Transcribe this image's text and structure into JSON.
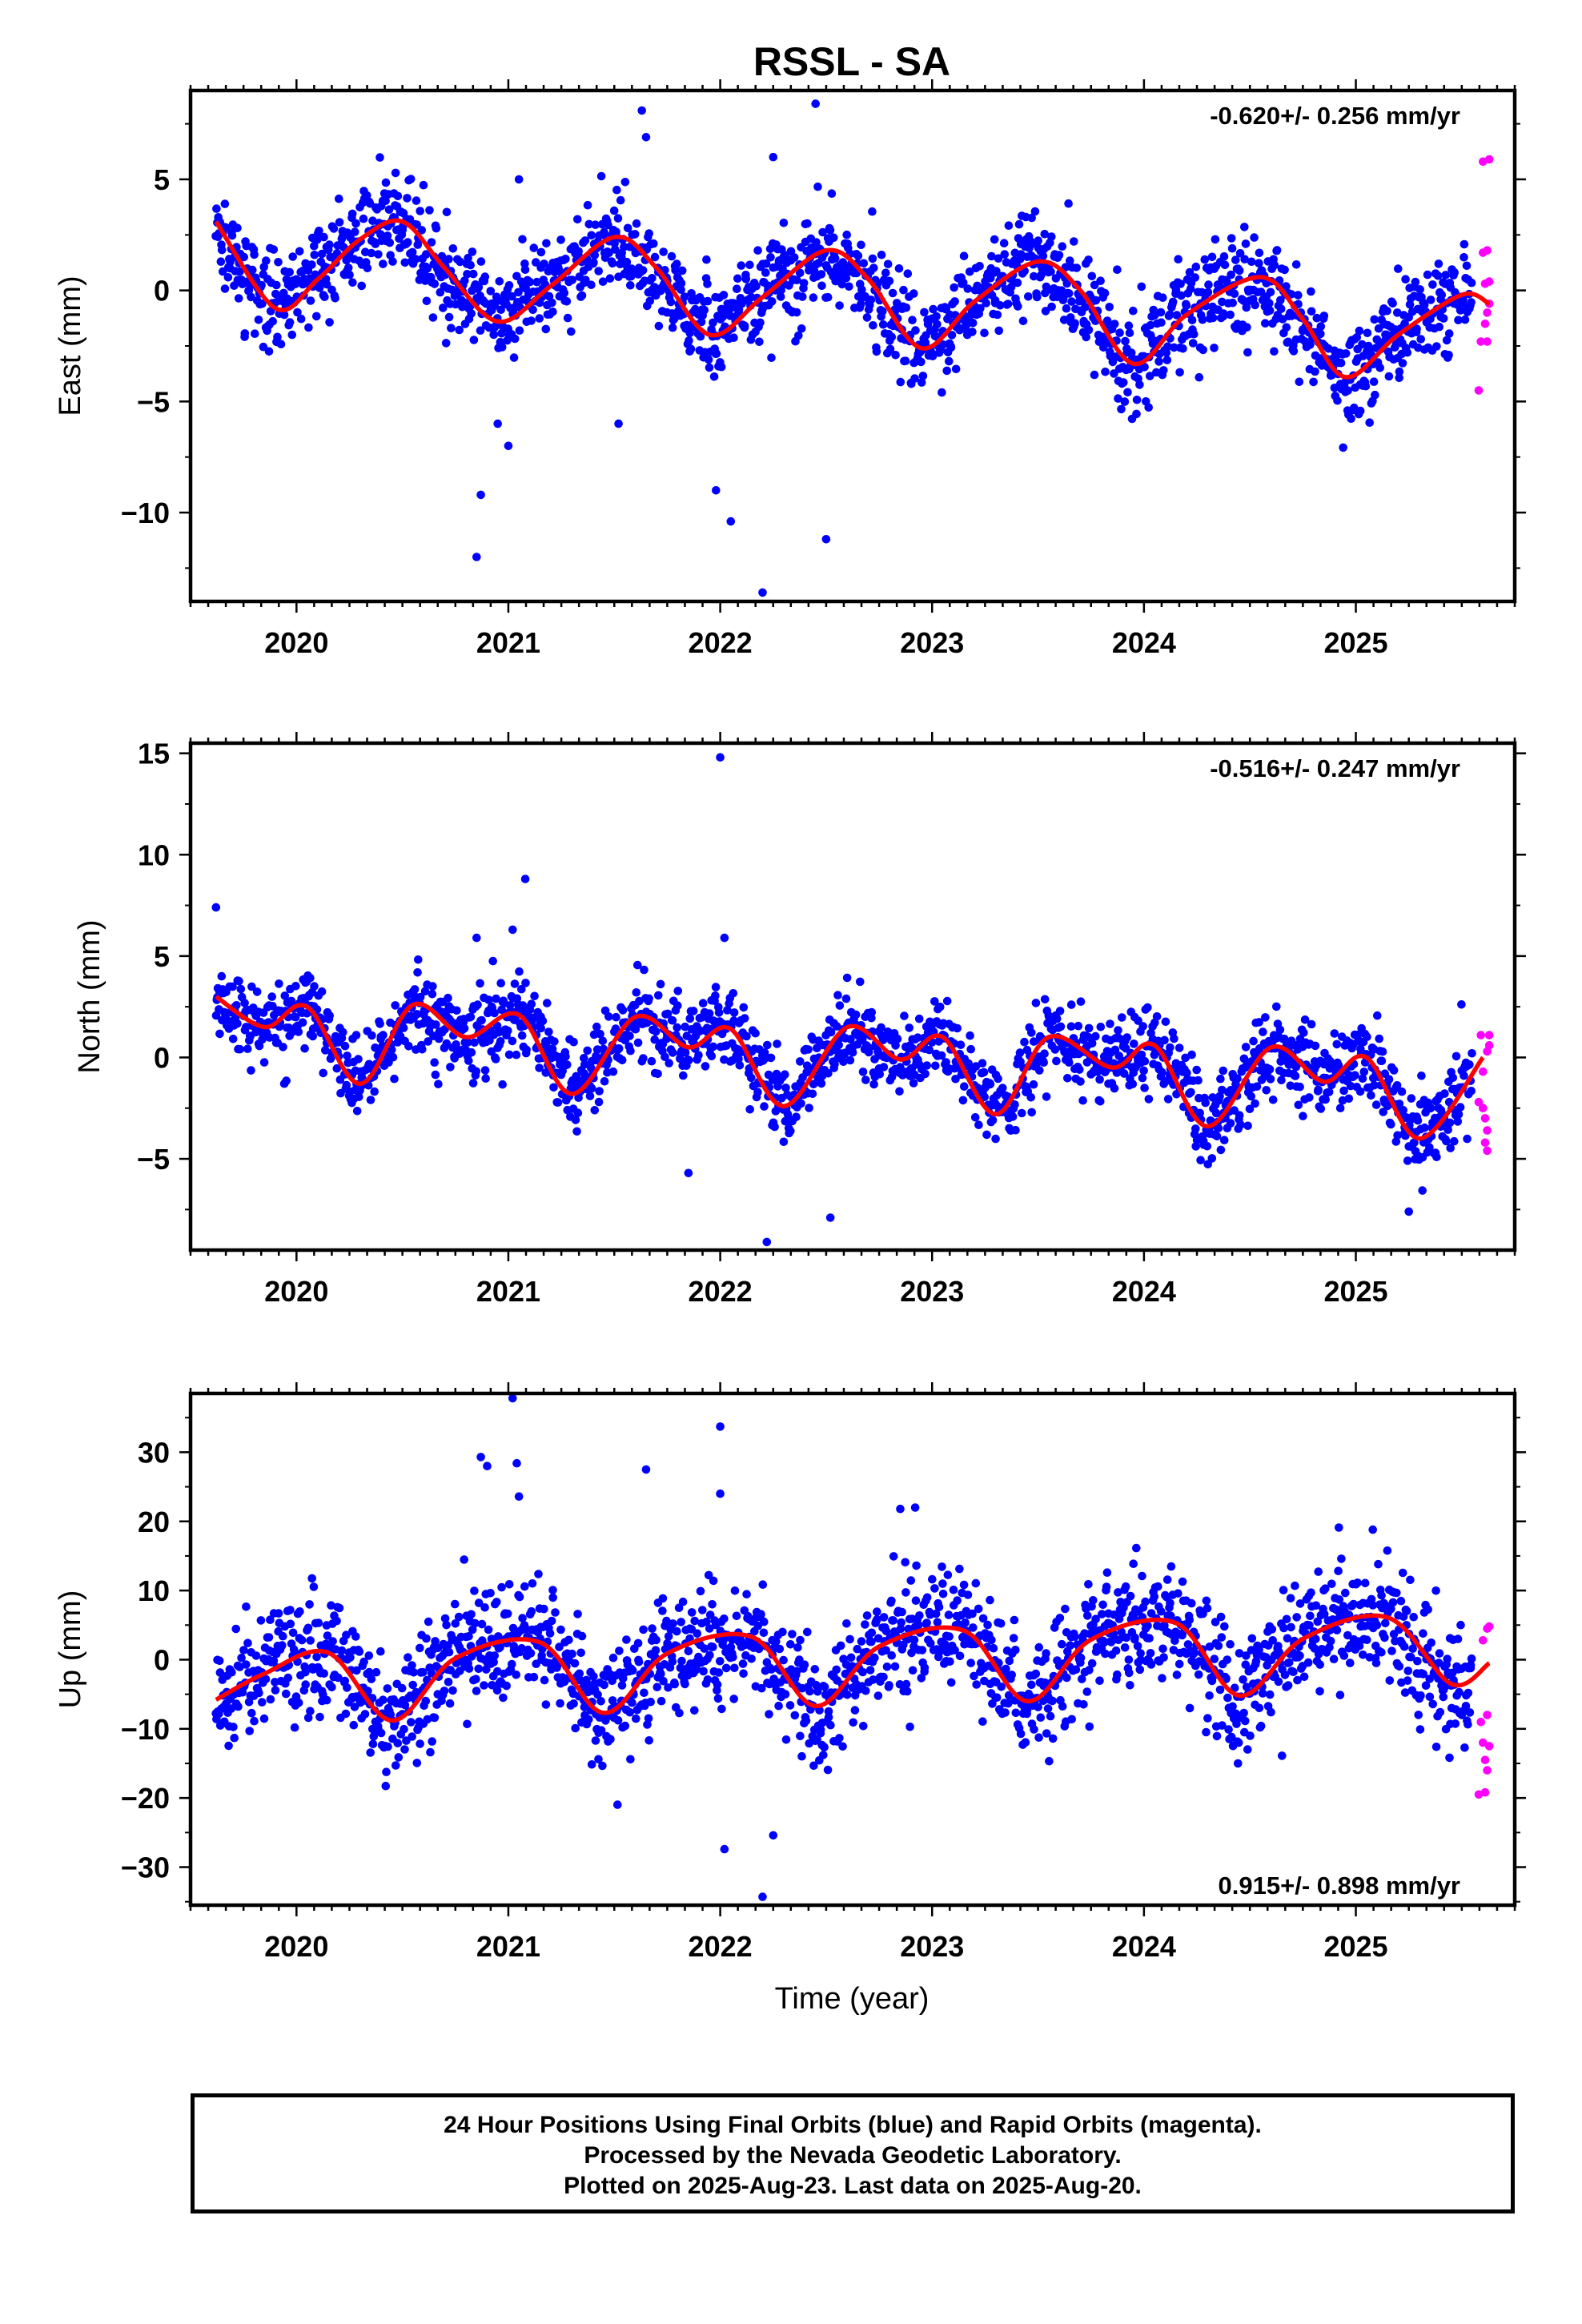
{
  "title": "RSSL - SA",
  "xlabel": "Time (year)",
  "footer": {
    "line1": "24 Hour Positions Using Final Orbits (blue) and Rapid Orbits (magenta).",
    "line2": "Processed by the Nevada Geodetic Laboratory.",
    "line3": "Plotted on 2025-Aug-23. Last data on 2025-Aug-20."
  },
  "colors": {
    "final": "#0000ff",
    "rapid": "#ff00ff",
    "fit": "#ff0000"
  },
  "chart_data": [
    {
      "type": "scatter",
      "ylabel": "East (mm)",
      "rate_label": "-0.620+/- 0.256 mm/yr",
      "rate_position": "top-right",
      "xlim": [
        2019.5,
        2025.75
      ],
      "ylim": [
        -14,
        9
      ],
      "xticks": [
        2020,
        2021,
        2022,
        2023,
        2024,
        2025
      ],
      "xtick_labels": [
        "2020",
        "2021",
        "2022",
        "2023",
        "2024",
        "2025"
      ],
      "yticks": [
        -10,
        -5,
        0,
        5
      ],
      "ytick_labels": [
        "−10",
        "−5",
        "0",
        "5"
      ],
      "trend_fit": {
        "x": [
          2019.62,
          2019.9,
          2020.1,
          2020.3,
          2020.5,
          2020.7,
          2020.95,
          2021.2,
          2021.5,
          2021.7,
          2021.95,
          2022.2,
          2022.5,
          2022.7,
          2022.95,
          2023.2,
          2023.5,
          2023.7,
          2023.95,
          2024.2,
          2024.55,
          2024.75,
          2024.95,
          2025.2,
          2025.5,
          2025.63
        ],
        "y": [
          3.1,
          -0.8,
          0.5,
          2.3,
          3.1,
          1.0,
          -1.4,
          0.2,
          2.4,
          1.0,
          -2.0,
          -0.3,
          1.8,
          0.5,
          -2.6,
          -0.5,
          1.3,
          0.0,
          -3.3,
          -1.1,
          0.6,
          -1.3,
          -3.9,
          -2.0,
          -0.2,
          -0.6
        ]
      },
      "final_series": {
        "name": "Final Orbits",
        "x_range": [
          2019.62,
          2025.55
        ]
      },
      "rapid_series": {
        "name": "Rapid Orbits",
        "x": [
          2025.58,
          2025.59,
          2025.6,
          2025.6,
          2025.61,
          2025.61,
          2025.62,
          2025.62,
          2025.62,
          2025.63,
          2025.63,
          2025.63
        ],
        "y": [
          -4.5,
          -2.3,
          5.8,
          1.7,
          -1.5,
          0.3,
          -1.0,
          1.8,
          -2.3,
          -0.6,
          0.4,
          5.9
        ]
      },
      "outliers": {
        "x": [
          2020.85,
          2020.87,
          2020.95,
          2021.0,
          2021.05,
          2021.52,
          2021.63,
          2021.65,
          2021.98,
          2022.05,
          2022.2,
          2022.25,
          2022.45,
          2022.5
        ],
        "y": [
          -12.0,
          -9.2,
          -6.0,
          -7.0,
          5.0,
          -6.0,
          8.1,
          6.9,
          -9.0,
          -10.4,
          -13.6,
          6.0,
          8.4,
          -11.2
        ]
      }
    },
    {
      "type": "scatter",
      "ylabel": "North (mm)",
      "rate_label": "-0.516+/- 0.247 mm/yr",
      "rate_position": "top-right",
      "xlim": [
        2019.5,
        2025.75
      ],
      "ylim": [
        -9.5,
        15.5
      ],
      "xticks": [
        2020,
        2021,
        2022,
        2023,
        2024,
        2025
      ],
      "xtick_labels": [
        "2020",
        "2021",
        "2022",
        "2023",
        "2024",
        "2025"
      ],
      "yticks": [
        -5,
        0,
        5,
        10,
        15
      ],
      "ytick_labels": [
        "−5",
        "0",
        "5",
        "10",
        "15"
      ],
      "trend_fit": {
        "x": [
          2019.62,
          2019.85,
          2020.05,
          2020.3,
          2020.55,
          2020.8,
          2021.05,
          2021.3,
          2021.6,
          2021.85,
          2022.05,
          2022.3,
          2022.6,
          2022.85,
          2023.05,
          2023.3,
          2023.55,
          2023.85,
          2024.05,
          2024.3,
          2024.6,
          2024.85,
          2025.05,
          2025.3,
          2025.6
        ],
        "y": [
          3.0,
          1.5,
          2.5,
          -1.3,
          2.6,
          1.0,
          2.1,
          -1.8,
          2.0,
          0.5,
          1.4,
          -2.4,
          1.5,
          -0.1,
          1.0,
          -2.8,
          1.0,
          -0.5,
          0.6,
          -3.4,
          0.5,
          -1.2,
          0.0,
          -4.0,
          0.0
        ]
      },
      "final_series": {
        "name": "Final Orbits",
        "x_range": [
          2019.62,
          2025.55
        ]
      },
      "rapid_series": {
        "name": "Rapid Orbits",
        "x": [
          2025.58,
          2025.59,
          2025.6,
          2025.6,
          2025.61,
          2025.61,
          2025.62,
          2025.62,
          2025.62,
          2025.63,
          2025.63
        ],
        "y": [
          -2.2,
          1.1,
          -0.7,
          -2.5,
          -3.0,
          -4.2,
          0.3,
          -3.6,
          -4.6,
          0.6,
          1.1
        ]
      },
      "outliers": {
        "x": [
          2019.62,
          2020.85,
          2021.02,
          2021.08,
          2021.85,
          2022.0,
          2022.02,
          2022.22,
          2022.52,
          2025.25
        ],
        "y": [
          7.4,
          5.9,
          6.3,
          8.8,
          -5.7,
          14.8,
          5.9,
          -9.1,
          -7.9,
          -7.6
        ]
      }
    },
    {
      "type": "scatter",
      "ylabel": "Up (mm)",
      "rate_label": "0.915+/- 0.898 mm/yr",
      "rate_position": "bottom-right",
      "xlim": [
        2019.5,
        2025.75
      ],
      "ylim": [
        -35.5,
        38.5
      ],
      "xticks": [
        2020,
        2021,
        2022,
        2023,
        2024,
        2025
      ],
      "xtick_labels": [
        "2020",
        "2021",
        "2022",
        "2023",
        "2024",
        "2025"
      ],
      "yticks": [
        -30,
        -20,
        -10,
        0,
        10,
        20,
        30
      ],
      "ytick_labels": [
        "−30",
        "−20",
        "−10",
        "0",
        "10",
        "20",
        "30"
      ],
      "trend_fit": {
        "x": [
          2019.62,
          2019.85,
          2020.15,
          2020.45,
          2020.75,
          2021.15,
          2021.45,
          2021.75,
          2022.15,
          2022.45,
          2022.75,
          2023.15,
          2023.45,
          2023.75,
          2024.15,
          2024.45,
          2024.75,
          2025.15,
          2025.45,
          2025.63
        ],
        "y": [
          -5.8,
          -2.0,
          1.0,
          -8.8,
          0.2,
          2.5,
          -7.7,
          0.9,
          3.3,
          -6.7,
          1.9,
          4.2,
          -6.0,
          2.9,
          5.3,
          -5.2,
          3.0,
          6.1,
          -3.5,
          -0.5
        ]
      },
      "final_series": {
        "name": "Final Orbits",
        "x_range": [
          2019.62,
          2025.55
        ]
      },
      "rapid_series": {
        "name": "Rapid Orbits",
        "x": [
          2025.58,
          2025.59,
          2025.6,
          2025.6,
          2025.61,
          2025.61,
          2025.62,
          2025.62,
          2025.62,
          2025.63,
          2025.63
        ],
        "y": [
          -19.5,
          -9.0,
          2.8,
          -12.0,
          -19.2,
          -14.5,
          -8.0,
          4.5,
          -16.0,
          -12.5,
          4.8
        ]
      },
      "outliers": {
        "x": [
          2020.87,
          2020.9,
          2021.02,
          2021.04,
          2021.05,
          2021.65,
          2022.0,
          2022.0,
          2022.02,
          2022.25,
          2022.2,
          2022.85,
          2022.92,
          2024.92,
          2025.08
        ],
        "y": [
          29.3,
          28.0,
          37.8,
          28.4,
          23.6,
          27.5,
          33.7,
          24.0,
          -27.4,
          -25.4,
          -34.3,
          21.8,
          22.0,
          19.1,
          18.8
        ]
      }
    }
  ]
}
